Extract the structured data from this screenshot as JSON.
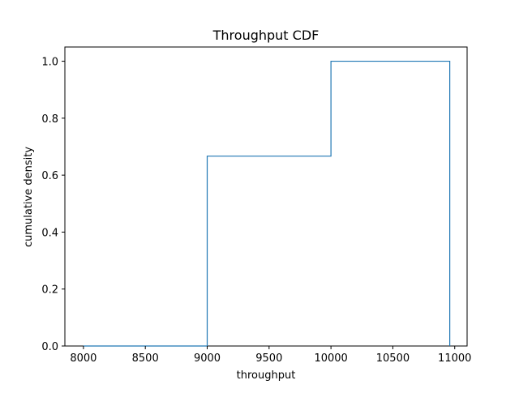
{
  "chart_data": {
    "type": "line",
    "title": "Throughput CDF",
    "xlabel": "throughput",
    "ylabel": "cumulative density",
    "xlim": [
      7850,
      11100
    ],
    "ylim": [
      0,
      1.05
    ],
    "x_ticks": [
      8000,
      8500,
      9000,
      9500,
      10000,
      10500,
      11000
    ],
    "y_ticks": [
      0.0,
      0.2,
      0.4,
      0.6,
      0.8,
      1.0
    ],
    "grid": false,
    "series": [
      {
        "color": "#1f77b4",
        "x": [
          8000,
          9000,
          9000,
          10000,
          10000,
          10960,
          10960
        ],
        "y": [
          0,
          0,
          0.6667,
          0.6667,
          1.0,
          1.0,
          0
        ]
      }
    ]
  }
}
